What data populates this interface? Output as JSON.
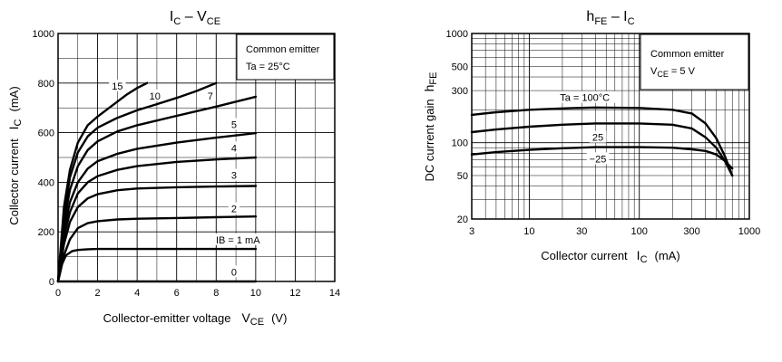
{
  "colors": {
    "line": "#000000",
    "background": "#ffffff"
  },
  "chart_data": [
    {
      "type": "line",
      "title": {
        "main": "I",
        "sub1": "C",
        "dash": " – V",
        "sub2": "CE"
      },
      "xlabel": {
        "text": "Collector-emitter voltage",
        "sym": "V",
        "sym_sub": "CE",
        "unit": "(V)"
      },
      "ylabel": {
        "text": "Collector current",
        "sym": "I",
        "sym_sub": "C",
        "unit": "(mA)"
      },
      "xlim": [
        0,
        14
      ],
      "ylim": [
        0,
        1000
      ],
      "xticks": [
        "0",
        "2",
        "4",
        "6",
        "8",
        "10",
        "12",
        "14"
      ],
      "yticks": [
        "0",
        "200",
        "400",
        "600",
        "800",
        "1000"
      ],
      "grid": true,
      "note": [
        "Common emitter",
        "Ta = 25°C"
      ],
      "note_placement": "top-right",
      "series": [
        {
          "name": "0",
          "x": [
            0,
            1,
            4,
            8,
            10
          ],
          "y": [
            0,
            0,
            0,
            0,
            0
          ]
        },
        {
          "name": "IB = 1 mA",
          "x": [
            0,
            0.2,
            0.4,
            0.7,
            1,
            1.5,
            2,
            4,
            6,
            8,
            10
          ],
          "y": [
            0,
            70,
            105,
            122,
            127,
            130,
            131,
            131,
            131,
            131,
            131
          ]
        },
        {
          "name": "2",
          "x": [
            0,
            0.3,
            0.6,
            1,
            1.5,
            2,
            3,
            4,
            6,
            8,
            10
          ],
          "y": [
            0,
            105,
            170,
            215,
            235,
            243,
            250,
            253,
            256,
            259,
            262
          ]
        },
        {
          "name": "3",
          "x": [
            0,
            0.3,
            0.6,
            1,
            1.5,
            2,
            3,
            4,
            6,
            8,
            10
          ],
          "y": [
            0,
            150,
            240,
            300,
            335,
            352,
            368,
            375,
            380,
            383,
            385
          ]
        },
        {
          "name": "4",
          "x": [
            0,
            0.3,
            0.6,
            1,
            1.5,
            2,
            3,
            4,
            6,
            8,
            10
          ],
          "y": [
            0,
            180,
            280,
            355,
            400,
            425,
            450,
            465,
            482,
            492,
            500
          ]
        },
        {
          "name": "5",
          "x": [
            0,
            0.3,
            0.6,
            1,
            1.5,
            2,
            3,
            4,
            6,
            8,
            10
          ],
          "y": [
            0,
            210,
            320,
            400,
            455,
            485,
            515,
            535,
            560,
            580,
            598
          ]
        },
        {
          "name": "7",
          "x": [
            0,
            0.3,
            0.6,
            1,
            1.5,
            2,
            3,
            4,
            6,
            8,
            10
          ],
          "y": [
            0,
            240,
            370,
            465,
            530,
            565,
            605,
            630,
            668,
            705,
            745
          ]
        },
        {
          "name": "10",
          "x": [
            0,
            0.3,
            0.6,
            1,
            1.5,
            2,
            3,
            4,
            5,
            6,
            7,
            8
          ],
          "y": [
            0,
            270,
            420,
            520,
            585,
            620,
            660,
            690,
            715,
            740,
            768,
            800
          ]
        },
        {
          "name": "15",
          "x": [
            0,
            0.3,
            0.6,
            1,
            1.5,
            2,
            2.5,
            3,
            3.5,
            4,
            4.5
          ],
          "y": [
            0,
            300,
            450,
            560,
            630,
            665,
            695,
            725,
            755,
            780,
            800
          ]
        }
      ],
      "labels": [
        {
          "text": "15",
          "x": 3,
          "y": 785
        },
        {
          "text": "10",
          "x": 4.9,
          "y": 745
        },
        {
          "text": "7",
          "x": 7.7,
          "y": 745
        },
        {
          "text": "5",
          "x": 8.9,
          "y": 630
        },
        {
          "text": "4",
          "x": 8.9,
          "y": 535
        },
        {
          "text": "3",
          "x": 8.9,
          "y": 425
        },
        {
          "text": "2",
          "x": 8.9,
          "y": 290
        },
        {
          "text": "IB = 1 mA",
          "x": 9.1,
          "y": 165
        },
        {
          "text": "0",
          "x": 8.9,
          "y": 35
        }
      ]
    },
    {
      "type": "line",
      "title": {
        "main": "h",
        "sub1": "FE",
        "dash": " – I",
        "sub2": "C"
      },
      "xlabel": {
        "text": "Collector current",
        "sym": "I",
        "sym_sub": "C",
        "unit": "(mA)"
      },
      "ylabel": {
        "text": "DC current gain",
        "sym": "h",
        "sym_sub": "FE",
        "unit": ""
      },
      "xscale": "log",
      "yscale": "log",
      "xlim": [
        3,
        1000
      ],
      "ylim": [
        20,
        1000
      ],
      "xticks": [
        {
          "label": "3",
          "value": 3
        },
        {
          "label": "10",
          "value": 10
        },
        {
          "label": "30",
          "value": 30
        },
        {
          "label": "100",
          "value": 100
        },
        {
          "label": "300",
          "value": 300
        },
        {
          "label": "1000",
          "value": 1000
        }
      ],
      "yticks": [
        {
          "label": "20",
          "value": 20
        },
        {
          "label": "50",
          "value": 50
        },
        {
          "label": "100",
          "value": 100
        },
        {
          "label": "300",
          "value": 300
        },
        {
          "label": "500",
          "value": 500
        },
        {
          "label": "1000",
          "value": 1000
        }
      ],
      "grid": true,
      "note": [
        "Common emitter",
        "V",
        "CE",
        " = 5 V"
      ],
      "note_placement": "top-right",
      "series": [
        {
          "name": "Ta = 100°C",
          "x": [
            3,
            5,
            10,
            20,
            40,
            100,
            200,
            300,
            400,
            500,
            600,
            700
          ],
          "y": [
            180,
            190,
            200,
            206,
            210,
            208,
            200,
            185,
            150,
            110,
            75,
            50
          ]
        },
        {
          "name": "25",
          "x": [
            3,
            5,
            10,
            20,
            40,
            100,
            200,
            300,
            400,
            500,
            600,
            700
          ],
          "y": [
            125,
            132,
            140,
            146,
            150,
            150,
            146,
            135,
            112,
            90,
            68,
            50
          ]
        },
        {
          "name": "−25",
          "x": [
            3,
            5,
            10,
            20,
            40,
            100,
            200,
            300,
            400,
            500,
            600,
            700
          ],
          "y": [
            78,
            82,
            86,
            89,
            91,
            91,
            90,
            87,
            84,
            78,
            68,
            58
          ]
        }
      ],
      "labels": [
        {
          "text": "Ta = 100°C",
          "x": 32,
          "y": 255
        },
        {
          "text": "25",
          "x": 42,
          "y": 110
        },
        {
          "text": "−25",
          "x": 42,
          "y": 70
        }
      ]
    }
  ]
}
